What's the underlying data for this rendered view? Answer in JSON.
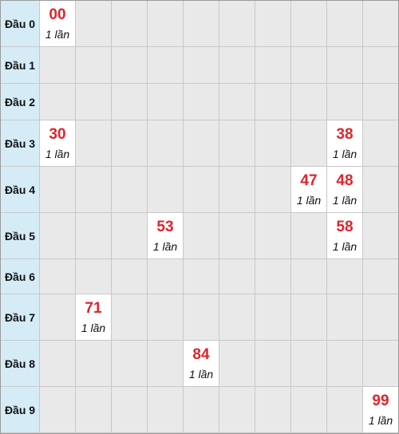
{
  "rows": [
    {
      "label": "Đầu 0",
      "hits": [
        {
          "col": 0,
          "number": "00",
          "count": "1 lần"
        }
      ]
    },
    {
      "label": "Đầu 1",
      "hits": []
    },
    {
      "label": "Đầu 2",
      "hits": []
    },
    {
      "label": "Đầu 3",
      "hits": [
        {
          "col": 0,
          "number": "30",
          "count": "1 lần"
        },
        {
          "col": 8,
          "number": "38",
          "count": "1 lần"
        }
      ]
    },
    {
      "label": "Đầu 4",
      "hits": [
        {
          "col": 7,
          "number": "47",
          "count": "1 lần"
        },
        {
          "col": 8,
          "number": "48",
          "count": "1 lần"
        }
      ]
    },
    {
      "label": "Đầu 5",
      "hits": [
        {
          "col": 3,
          "number": "53",
          "count": "1 lần"
        },
        {
          "col": 8,
          "number": "58",
          "count": "1 lần"
        }
      ]
    },
    {
      "label": "Đầu 6",
      "hits": []
    },
    {
      "label": "Đầu 7",
      "hits": [
        {
          "col": 1,
          "number": "71",
          "count": "1 lần"
        }
      ]
    },
    {
      "label": "Đầu 8",
      "hits": [
        {
          "col": 4,
          "number": "84",
          "count": "1 lần"
        }
      ]
    },
    {
      "label": "Đầu 9",
      "hits": [
        {
          "col": 9,
          "number": "99",
          "count": "1 lần"
        }
      ]
    }
  ],
  "colors": {
    "number": "#e0242b",
    "header_bg": "#d5ecf7",
    "empty_cell": "#e9e9e9",
    "hit_cell": "#ffffff"
  }
}
